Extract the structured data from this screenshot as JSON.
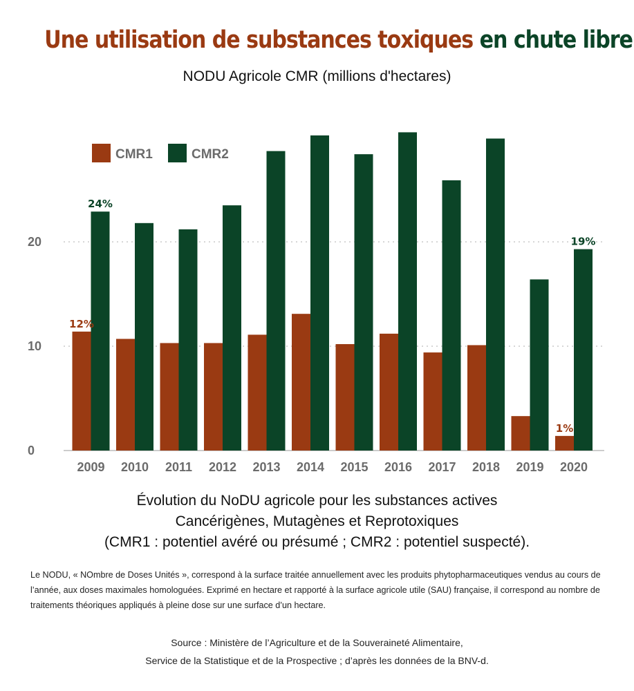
{
  "header": {
    "title_part1": "Une utilisation de substances toxiques",
    "title_part2": "en chute libre",
    "subtitle": "NODU Agricole CMR (millions d'hectares)"
  },
  "colors": {
    "cmr1": "#9a3a12",
    "cmr2": "#0b4427",
    "grid": "#c8c8c8",
    "axis_text": "#6b6b6b"
  },
  "chart_data": {
    "type": "bar",
    "categories": [
      "2009",
      "2010",
      "2011",
      "2012",
      "2013",
      "2014",
      "2015",
      "2016",
      "2017",
      "2018",
      "2019",
      "2020"
    ],
    "series": [
      {
        "name": "CMR1",
        "values": [
          11.4,
          10.7,
          10.3,
          10.3,
          11.1,
          13.1,
          10.2,
          11.2,
          9.4,
          10.1,
          3.3,
          1.4
        ]
      },
      {
        "name": "CMR2",
        "values": [
          22.9,
          21.8,
          21.2,
          23.5,
          28.7,
          30.2,
          28.4,
          30.5,
          25.9,
          29.9,
          16.4,
          19.3
        ]
      }
    ],
    "yticks": [
      0,
      10,
      20
    ],
    "ylim": [
      0,
      31
    ],
    "grid": "horizontal dotted",
    "legend": "top-left",
    "annotations": [
      {
        "series": 1,
        "index": 0,
        "text": "24%"
      },
      {
        "series": 0,
        "index": 0,
        "text": "12%"
      },
      {
        "series": 1,
        "index": 11,
        "text": "19%"
      },
      {
        "series": 0,
        "index": 11,
        "text": "1%"
      }
    ]
  },
  "caption": {
    "line1": "Évolution du NoDU agricole pour les substances actives",
    "line2": "Cancérigènes, Mutagènes et Reprotoxiques",
    "line3": "(CMR1 : potentiel avéré ou présumé ; CMR2 : potentiel suspecté)."
  },
  "note": "Le NODU, « NOmbre de Doses Unités », correspond à la surface traitée annuellement  avec les produits phytopharmaceutiques vendus au cours de l’année, aux doses maximales homologuées. Exprimé en hectare et rapporté à la surface agricole utile (SAU) française, il correspond au nombre de traitements théoriques appliqués à pleine dose sur une surface d’un hectare.",
  "source": {
    "line1": "Source : Ministère de l’Agriculture et de la Souveraineté Alimentaire,",
    "line2": "Service de la Statistique et de la Prospective ; d’après les données de la BNV-d."
  }
}
